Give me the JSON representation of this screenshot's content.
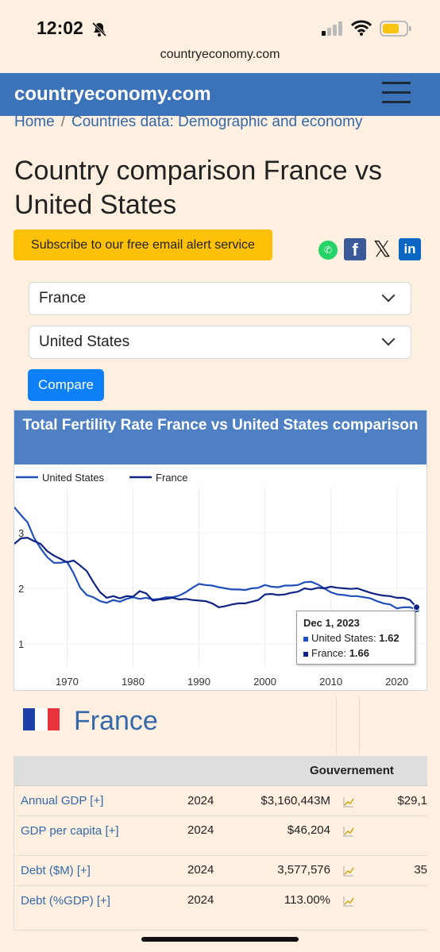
{
  "status": {
    "time": "12:02"
  },
  "browser": {
    "url": "countryeconomy.com"
  },
  "header": {
    "brand": "countryeconomy.com"
  },
  "breadcrumb": {
    "home": "Home",
    "sep": "/",
    "current": "Countries data: Demographic and economy"
  },
  "page": {
    "title": "Country comparison France vs United States"
  },
  "subscribe_label": "Subscribe to our free email alert service",
  "share": {
    "whatsapp": "✆",
    "facebook": "f",
    "x": "𝕏",
    "linkedin": "in"
  },
  "selects": {
    "country1": "France",
    "country2": "United States"
  },
  "compare_label": "Compare",
  "colors": {
    "us": "#1f4fb8",
    "france": "#0f2485",
    "header": "#3c72b7",
    "title_bar": "#4f80c3"
  },
  "chart_data": {
    "type": "line",
    "title": "Total Fertility Rate France vs United States comparison",
    "x_ticks": [
      1970,
      1980,
      1990,
      2000,
      2010,
      2020
    ],
    "y_ticks": [
      1,
      2,
      3
    ],
    "xlim": [
      1962,
      2024.5
    ],
    "ylim": [
      0.6,
      3.8
    ],
    "legend_position": "top-left",
    "series": [
      {
        "name": "United States",
        "x": [
          1962,
          1963,
          1964,
          1965,
          1966,
          1967,
          1968,
          1969,
          1970,
          1971,
          1972,
          1973,
          1974,
          1975,
          1976,
          1977,
          1978,
          1979,
          1980,
          1981,
          1982,
          1983,
          1984,
          1985,
          1986,
          1987,
          1988,
          1989,
          1990,
          1991,
          1992,
          1993,
          1994,
          1995,
          1996,
          1997,
          1998,
          1999,
          2000,
          2001,
          2002,
          2003,
          2004,
          2005,
          2006,
          2007,
          2008,
          2009,
          2010,
          2011,
          2012,
          2013,
          2014,
          2015,
          2016,
          2017,
          2018,
          2019,
          2020,
          2021,
          2022,
          2023
        ],
        "values": [
          3.46,
          3.32,
          3.19,
          2.91,
          2.72,
          2.56,
          2.46,
          2.46,
          2.48,
          2.27,
          2.01,
          1.88,
          1.84,
          1.77,
          1.74,
          1.79,
          1.76,
          1.81,
          1.84,
          1.81,
          1.83,
          1.8,
          1.81,
          1.84,
          1.84,
          1.87,
          1.93,
          2.01,
          2.08,
          2.06,
          2.05,
          2.02,
          2.0,
          1.98,
          1.98,
          1.97,
          2.0,
          2.01,
          2.06,
          2.03,
          2.02,
          2.05,
          2.05,
          2.06,
          2.11,
          2.12,
          2.07,
          2.0,
          1.93,
          1.89,
          1.88,
          1.86,
          1.86,
          1.84,
          1.82,
          1.77,
          1.73,
          1.71,
          1.64,
          1.66,
          1.66,
          1.62
        ]
      },
      {
        "name": "France",
        "x": [
          1962,
          1963,
          1964,
          1965,
          1966,
          1967,
          1968,
          1969,
          1970,
          1971,
          1972,
          1973,
          1974,
          1975,
          1976,
          1977,
          1978,
          1979,
          1980,
          1981,
          1982,
          1983,
          1984,
          1985,
          1986,
          1987,
          1988,
          1989,
          1990,
          1991,
          1992,
          1993,
          1994,
          1995,
          1996,
          1997,
          1998,
          1999,
          2000,
          2001,
          2002,
          2003,
          2004,
          2005,
          2006,
          2007,
          2008,
          2009,
          2010,
          2011,
          2012,
          2013,
          2014,
          2015,
          2016,
          2017,
          2018,
          2019,
          2020,
          2021,
          2022,
          2023
        ],
        "values": [
          2.8,
          2.9,
          2.91,
          2.85,
          2.8,
          2.67,
          2.59,
          2.53,
          2.47,
          2.5,
          2.41,
          2.31,
          2.11,
          1.93,
          1.83,
          1.86,
          1.82,
          1.86,
          1.85,
          1.95,
          1.91,
          1.78,
          1.8,
          1.81,
          1.83,
          1.8,
          1.81,
          1.79,
          1.78,
          1.77,
          1.73,
          1.66,
          1.68,
          1.71,
          1.73,
          1.73,
          1.76,
          1.79,
          1.89,
          1.9,
          1.88,
          1.89,
          1.92,
          1.94,
          2.0,
          1.98,
          2.01,
          2.0,
          2.03,
          2.01,
          2.0,
          1.99,
          2.0,
          1.96,
          1.92,
          1.89,
          1.87,
          1.86,
          1.83,
          1.83,
          1.79,
          1.66
        ]
      }
    ]
  },
  "tooltip": {
    "date": "Dec 1, 2023",
    "us_label": "United States:",
    "us_value": "1.62",
    "fr_label": "France:",
    "fr_value": "1.66"
  },
  "country": {
    "name": "France"
  },
  "table": {
    "group_header": "Gouvernement",
    "rows": [
      {
        "label": "Annual GDP [+]",
        "year": "2024",
        "value": "$3,160,443M",
        "extra": "$29,1"
      },
      {
        "label": "GDP per capita [+]",
        "year": "2024",
        "value": "$46,204",
        "extra": ""
      },
      {
        "label": "Debt ($M) [+]",
        "year": "2024",
        "value": "3,577,576",
        "extra": "35"
      },
      {
        "label": "Debt (%GDP) [+]",
        "year": "2024",
        "value": "113.00%",
        "extra": ""
      }
    ]
  }
}
